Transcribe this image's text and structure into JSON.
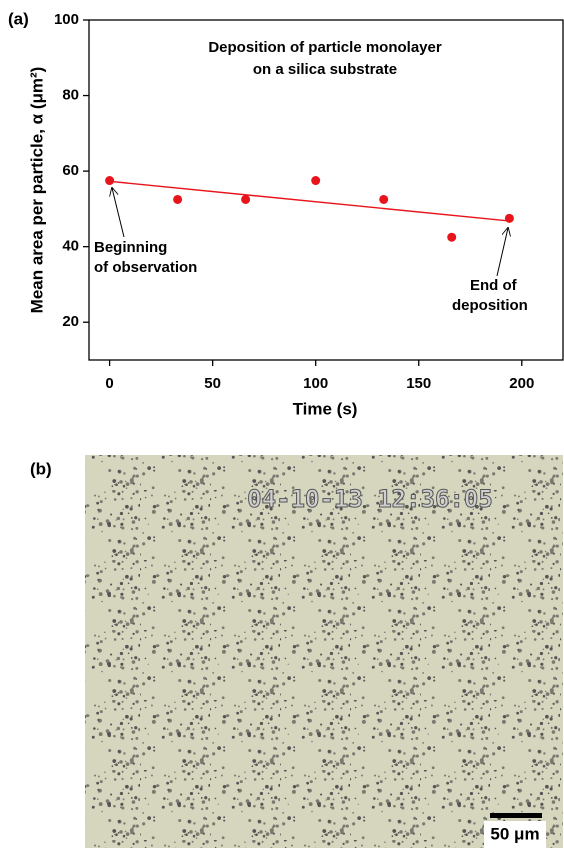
{
  "chart_data": {
    "type": "scatter",
    "panel_label": "(a)",
    "title": [
      "Deposition of particle monolayer",
      "on a silica substrate"
    ],
    "x_label": "Time (s)",
    "y_label": "Mean area per particle, α (μm²)",
    "series": [
      {
        "color": "#e8141c",
        "x": [
          0,
          33,
          66,
          100,
          133,
          166,
          194
        ],
        "values": [
          57.5,
          52.5,
          52.5,
          57.5,
          52.5,
          42.5,
          47.5
        ]
      },
      {
        "color": "#e8141c",
        "type": "line",
        "x": [
          0,
          194
        ],
        "values": [
          57.3,
          46.8
        ]
      }
    ],
    "annotations": [
      [
        "Beginning",
        "of observation"
      ],
      [
        "End of",
        "deposition"
      ]
    ],
    "xlim": [
      -10,
      220
    ],
    "xticks": [
      0,
      50,
      100,
      150,
      200
    ],
    "ylim": [
      10,
      100
    ],
    "yticks": [
      20,
      40,
      60,
      80,
      100
    ]
  },
  "image": {
    "panel_label": "(b)",
    "timestamp": "04-10-13 12:36:05",
    "scale_bar": "50 μm"
  }
}
